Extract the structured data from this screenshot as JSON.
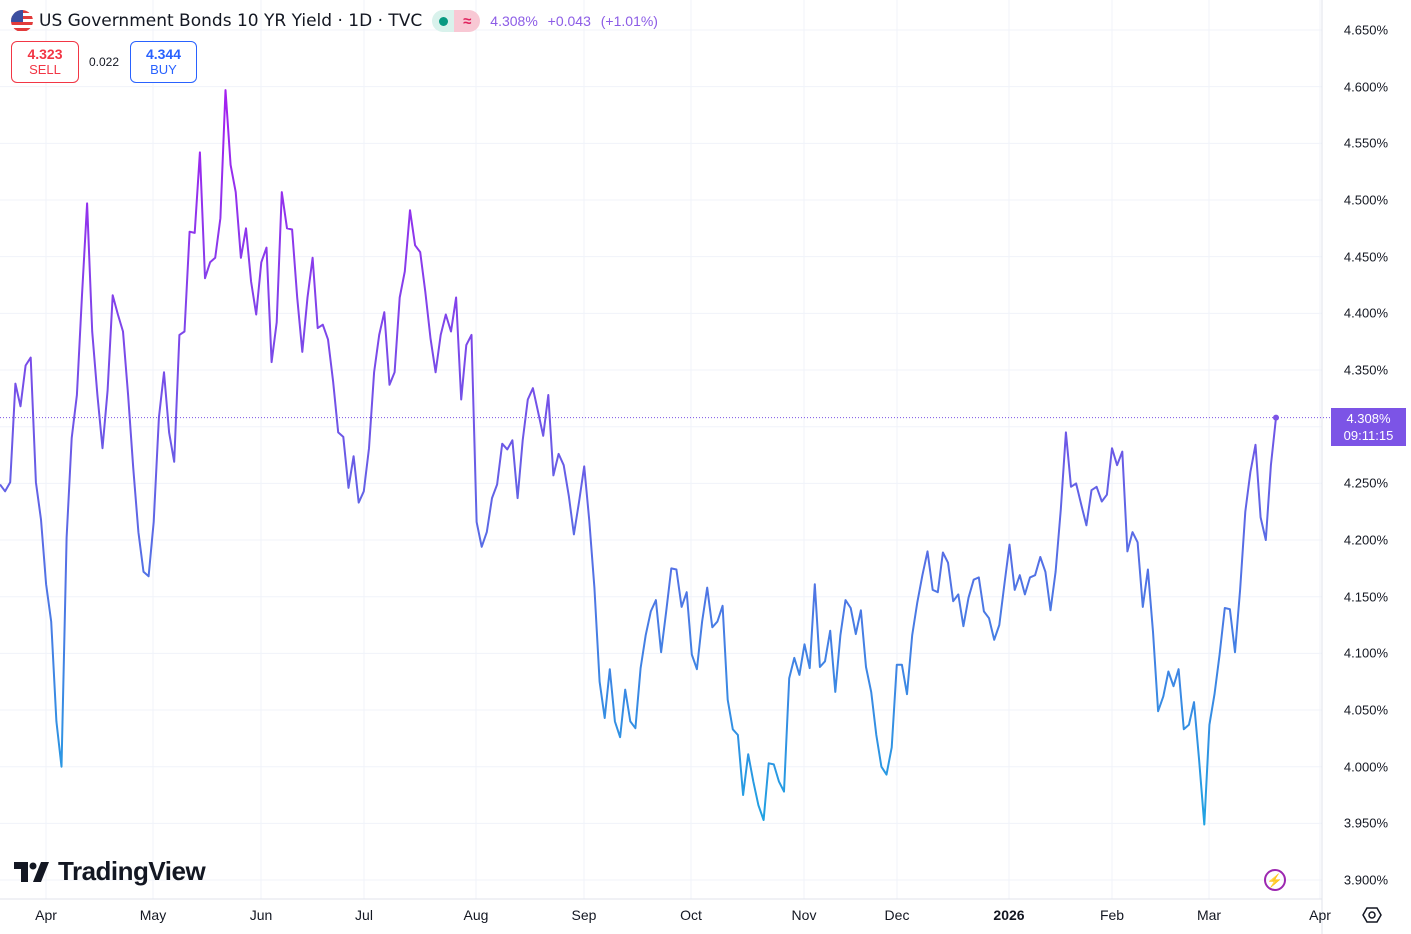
{
  "header": {
    "title": "US Government Bonds 10 YR Yield · 1D · TVC",
    "flag_icon": "us-flag-icon",
    "market_status_icon": "market-open-dot-icon",
    "delayed_icon": "approx-icon",
    "price": "4.308%",
    "change": "+0.043",
    "change_pct": "(+1.01%)",
    "quote_color": "#8c5ce6"
  },
  "trade": {
    "sell_price": "4.323",
    "sell_label": "SELL",
    "spread": "0.022",
    "buy_price": "4.344",
    "buy_label": "BUY"
  },
  "last_price_label": {
    "value": "4.308%",
    "countdown": "09:11:15",
    "color": "#7c54e6"
  },
  "branding": {
    "logo_text": "TradingView"
  },
  "colors": {
    "line_top": "#a41ff0",
    "line_mid": "#6a5be6",
    "line_bottom": "#1fa3e2",
    "grid": "#f0f3fa"
  },
  "chart_data": {
    "type": "line",
    "title": "US Government Bonds 10 YR Yield · 1D · TVC",
    "xlabel": "",
    "ylabel": "",
    "ylim": [
      3.9,
      4.65
    ],
    "y_ticks": [
      "4.650%",
      "4.600%",
      "4.550%",
      "4.500%",
      "4.450%",
      "4.400%",
      "4.350%",
      "4.300%",
      "4.250%",
      "4.200%",
      "4.150%",
      "4.100%",
      "4.050%",
      "4.000%",
      "3.950%",
      "3.900%"
    ],
    "x_ticks": [
      "Apr",
      "May",
      "Jun",
      "Jul",
      "Aug",
      "Sep",
      "Oct",
      "Nov",
      "Dec",
      "2026",
      "Feb",
      "Mar",
      "Apr"
    ],
    "grid": true,
    "last_value": 4.308,
    "values": [
      4.249,
      4.243,
      4.251,
      4.338,
      4.318,
      4.354,
      4.361,
      4.251,
      4.218,
      4.161,
      4.128,
      4.04,
      4.0,
      4.202,
      4.29,
      4.328,
      4.416,
      4.497,
      4.384,
      4.328,
      4.281,
      4.332,
      4.416,
      4.399,
      4.384,
      4.328,
      4.264,
      4.207,
      4.172,
      4.168,
      4.216,
      4.308,
      4.348,
      4.295,
      4.269,
      4.381,
      4.384,
      4.472,
      4.471,
      4.542,
      4.431,
      4.445,
      4.449,
      4.484,
      4.597,
      4.531,
      4.507,
      4.449,
      4.475,
      4.428,
      4.399,
      4.445,
      4.458,
      4.357,
      4.392,
      4.507,
      4.475,
      4.474,
      4.414,
      4.366,
      4.414,
      4.449,
      4.387,
      4.39,
      4.377,
      4.34,
      4.295,
      4.291,
      4.246,
      4.274,
      4.233,
      4.243,
      4.281,
      4.348,
      4.381,
      4.401,
      4.337,
      4.348,
      4.414,
      4.437,
      4.491,
      4.46,
      4.454,
      4.419,
      4.378,
      4.348,
      4.381,
      4.399,
      4.384,
      4.414,
      4.324,
      4.372,
      4.381,
      4.216,
      4.194,
      4.207,
      4.237,
      4.249,
      4.285,
      4.28,
      4.288,
      4.237,
      4.288,
      4.324,
      4.334,
      4.313,
      4.292,
      4.328,
      4.257,
      4.276,
      4.266,
      4.239,
      4.205,
      4.234,
      4.265,
      4.217,
      4.158,
      4.075,
      4.043,
      4.086,
      4.04,
      4.026,
      4.068,
      4.04,
      4.034,
      4.087,
      4.116,
      4.137,
      4.147,
      4.101,
      4.137,
      4.175,
      4.174,
      4.141,
      4.154,
      4.099,
      4.086,
      4.128,
      4.158,
      4.123,
      4.128,
      4.142,
      4.059,
      4.033,
      4.028,
      3.975,
      4.011,
      3.987,
      3.966,
      3.953,
      4.003,
      4.002,
      3.987,
      3.978,
      4.078,
      4.096,
      4.081,
      4.108,
      4.087,
      4.161,
      4.088,
      4.093,
      4.12,
      4.066,
      4.116,
      4.147,
      4.14,
      4.117,
      4.138,
      4.088,
      4.066,
      4.028,
      4.0,
      3.993,
      4.017,
      4.09,
      4.09,
      4.064,
      4.116,
      4.145,
      4.169,
      4.19,
      4.156,
      4.154,
      4.189,
      4.18,
      4.146,
      4.152,
      4.124,
      4.149,
      4.165,
      4.167,
      4.137,
      4.131,
      4.112,
      4.125,
      4.161,
      4.196,
      4.156,
      4.169,
      4.152,
      4.167,
      4.169,
      4.185,
      4.172,
      4.138,
      4.172,
      4.227,
      4.295,
      4.247,
      4.25,
      4.231,
      4.213,
      4.244,
      4.247,
      4.234,
      4.24,
      4.281,
      4.266,
      4.278,
      4.19,
      4.207,
      4.198,
      4.141,
      4.174,
      4.119,
      4.049,
      4.062,
      4.084,
      4.071,
      4.086,
      4.033,
      4.037,
      4.057,
      4.006,
      3.949,
      4.037,
      4.064,
      4.099,
      4.14,
      4.139,
      4.101,
      4.156,
      4.225,
      4.26,
      4.284,
      4.22,
      4.2,
      4.266,
      4.308
    ]
  }
}
